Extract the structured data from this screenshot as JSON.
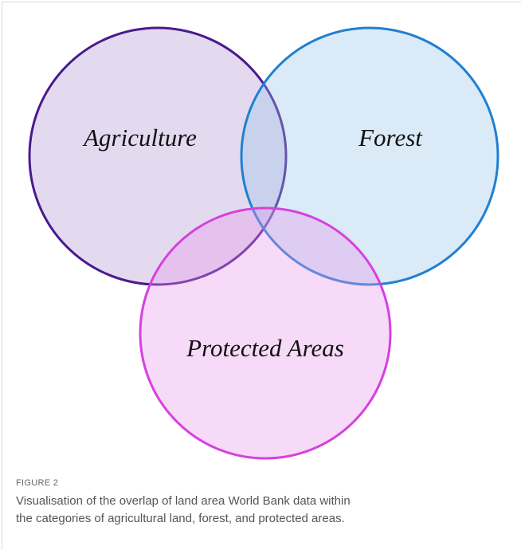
{
  "figure": {
    "sets": [
      {
        "label": "Agriculture"
      },
      {
        "label": "Forest"
      },
      {
        "label": "Protected Areas"
      }
    ],
    "caption": {
      "number": "FIGURE 2",
      "lines": [
        "Visualisation of the overlap of land area World Bank data within",
        "the categories of agricultural land, forest, and protected areas."
      ]
    }
  }
}
